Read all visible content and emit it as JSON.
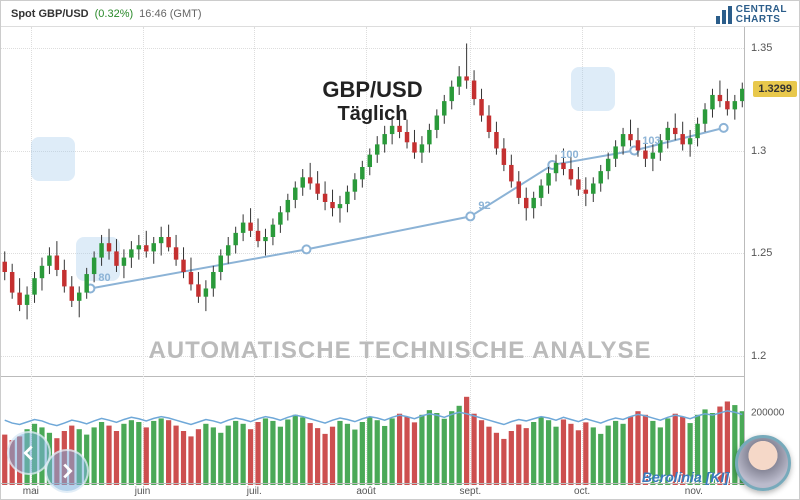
{
  "header": {
    "pair_label": "Spot GBP/USD",
    "change_pct": "(0.32%)",
    "time_label": "16:46 (GMT)"
  },
  "logo": {
    "line1": "CENTRAL",
    "line2": "CHARTS"
  },
  "title": {
    "pair": "GBP/USD",
    "period": "Täglich"
  },
  "watermark": "AUTOMATISCHE  TECHNISCHE ANALYSE",
  "berolinia": "Berolinia [KI]",
  "current_price_badge": "1.3299",
  "price_chart": {
    "type": "candlestick",
    "ylim": [
      1.19,
      1.36
    ],
    "yticks": [
      1.2,
      1.25,
      1.3,
      1.35
    ],
    "ytick_labels": [
      "1.2",
      "1.25",
      "1.3",
      "1.35"
    ],
    "grid_color": "#dddddd",
    "up_color": "#2a9a3a",
    "down_color": "#c43030",
    "wick_color": "#333333",
    "indicator_line_color": "#8cb3d6",
    "indicator_marker_color": "#8cb3d6",
    "indicator_points": [
      {
        "x": 0.12,
        "y": 1.233,
        "label": "80"
      },
      {
        "x": 0.41,
        "y": 1.252,
        "label": ""
      },
      {
        "x": 0.63,
        "y": 1.268,
        "label": "92"
      },
      {
        "x": 0.74,
        "y": 1.293,
        "label": "100"
      },
      {
        "x": 0.85,
        "y": 1.3,
        "label": "103"
      },
      {
        "x": 0.97,
        "y": 1.311,
        "label": ""
      }
    ],
    "candles": [
      {
        "o": 1.246,
        "h": 1.251,
        "l": 1.237,
        "c": 1.241
      },
      {
        "o": 1.241,
        "h": 1.245,
        "l": 1.228,
        "c": 1.231
      },
      {
        "o": 1.231,
        "h": 1.238,
        "l": 1.222,
        "c": 1.225
      },
      {
        "o": 1.225,
        "h": 1.234,
        "l": 1.218,
        "c": 1.23
      },
      {
        "o": 1.23,
        "h": 1.241,
        "l": 1.226,
        "c": 1.238
      },
      {
        "o": 1.238,
        "h": 1.248,
        "l": 1.232,
        "c": 1.244
      },
      {
        "o": 1.244,
        "h": 1.253,
        "l": 1.24,
        "c": 1.249
      },
      {
        "o": 1.249,
        "h": 1.256,
        "l": 1.239,
        "c": 1.242
      },
      {
        "o": 1.242,
        "h": 1.247,
        "l": 1.231,
        "c": 1.234
      },
      {
        "o": 1.234,
        "h": 1.239,
        "l": 1.224,
        "c": 1.227
      },
      {
        "o": 1.227,
        "h": 1.234,
        "l": 1.219,
        "c": 1.231
      },
      {
        "o": 1.231,
        "h": 1.243,
        "l": 1.228,
        "c": 1.24
      },
      {
        "o": 1.24,
        "h": 1.251,
        "l": 1.236,
        "c": 1.248
      },
      {
        "o": 1.248,
        "h": 1.259,
        "l": 1.244,
        "c": 1.255
      },
      {
        "o": 1.255,
        "h": 1.262,
        "l": 1.247,
        "c": 1.251
      },
      {
        "o": 1.251,
        "h": 1.257,
        "l": 1.241,
        "c": 1.244
      },
      {
        "o": 1.244,
        "h": 1.252,
        "l": 1.238,
        "c": 1.248
      },
      {
        "o": 1.248,
        "h": 1.256,
        "l": 1.243,
        "c": 1.252
      },
      {
        "o": 1.252,
        "h": 1.259,
        "l": 1.247,
        "c": 1.254
      },
      {
        "o": 1.254,
        "h": 1.261,
        "l": 1.248,
        "c": 1.251
      },
      {
        "o": 1.251,
        "h": 1.258,
        "l": 1.245,
        "c": 1.255
      },
      {
        "o": 1.255,
        "h": 1.263,
        "l": 1.249,
        "c": 1.258
      },
      {
        "o": 1.258,
        "h": 1.264,
        "l": 1.251,
        "c": 1.253
      },
      {
        "o": 1.253,
        "h": 1.259,
        "l": 1.244,
        "c": 1.247
      },
      {
        "o": 1.247,
        "h": 1.253,
        "l": 1.238,
        "c": 1.241
      },
      {
        "o": 1.241,
        "h": 1.248,
        "l": 1.232,
        "c": 1.235
      },
      {
        "o": 1.235,
        "h": 1.241,
        "l": 1.226,
        "c": 1.229
      },
      {
        "o": 1.229,
        "h": 1.237,
        "l": 1.222,
        "c": 1.233
      },
      {
        "o": 1.233,
        "h": 1.244,
        "l": 1.229,
        "c": 1.241
      },
      {
        "o": 1.241,
        "h": 1.252,
        "l": 1.237,
        "c": 1.249
      },
      {
        "o": 1.249,
        "h": 1.258,
        "l": 1.245,
        "c": 1.254
      },
      {
        "o": 1.254,
        "h": 1.263,
        "l": 1.25,
        "c": 1.26
      },
      {
        "o": 1.26,
        "h": 1.269,
        "l": 1.256,
        "c": 1.265
      },
      {
        "o": 1.265,
        "h": 1.272,
        "l": 1.258,
        "c": 1.261
      },
      {
        "o": 1.261,
        "h": 1.267,
        "l": 1.253,
        "c": 1.256
      },
      {
        "o": 1.256,
        "h": 1.262,
        "l": 1.249,
        "c": 1.258
      },
      {
        "o": 1.258,
        "h": 1.267,
        "l": 1.254,
        "c": 1.264
      },
      {
        "o": 1.264,
        "h": 1.273,
        "l": 1.26,
        "c": 1.27
      },
      {
        "o": 1.27,
        "h": 1.279,
        "l": 1.266,
        "c": 1.276
      },
      {
        "o": 1.276,
        "h": 1.285,
        "l": 1.272,
        "c": 1.282
      },
      {
        "o": 1.282,
        "h": 1.291,
        "l": 1.278,
        "c": 1.287
      },
      {
        "o": 1.287,
        "h": 1.294,
        "l": 1.281,
        "c": 1.284
      },
      {
        "o": 1.284,
        "h": 1.29,
        "l": 1.276,
        "c": 1.279
      },
      {
        "o": 1.279,
        "h": 1.285,
        "l": 1.271,
        "c": 1.275
      },
      {
        "o": 1.275,
        "h": 1.281,
        "l": 1.268,
        "c": 1.272
      },
      {
        "o": 1.272,
        "h": 1.278,
        "l": 1.265,
        "c": 1.274
      },
      {
        "o": 1.274,
        "h": 1.283,
        "l": 1.27,
        "c": 1.28
      },
      {
        "o": 1.28,
        "h": 1.289,
        "l": 1.276,
        "c": 1.286
      },
      {
        "o": 1.286,
        "h": 1.295,
        "l": 1.282,
        "c": 1.292
      },
      {
        "o": 1.292,
        "h": 1.301,
        "l": 1.288,
        "c": 1.298
      },
      {
        "o": 1.298,
        "h": 1.307,
        "l": 1.294,
        "c": 1.303
      },
      {
        "o": 1.303,
        "h": 1.312,
        "l": 1.299,
        "c": 1.308
      },
      {
        "o": 1.308,
        "h": 1.316,
        "l": 1.303,
        "c": 1.312
      },
      {
        "o": 1.312,
        "h": 1.319,
        "l": 1.306,
        "c": 1.309
      },
      {
        "o": 1.309,
        "h": 1.315,
        "l": 1.301,
        "c": 1.304
      },
      {
        "o": 1.304,
        "h": 1.31,
        "l": 1.296,
        "c": 1.299
      },
      {
        "o": 1.299,
        "h": 1.307,
        "l": 1.294,
        "c": 1.303
      },
      {
        "o": 1.303,
        "h": 1.313,
        "l": 1.299,
        "c": 1.31
      },
      {
        "o": 1.31,
        "h": 1.32,
        "l": 1.306,
        "c": 1.317
      },
      {
        "o": 1.317,
        "h": 1.327,
        "l": 1.313,
        "c": 1.324
      },
      {
        "o": 1.324,
        "h": 1.334,
        "l": 1.32,
        "c": 1.331
      },
      {
        "o": 1.331,
        "h": 1.341,
        "l": 1.327,
        "c": 1.336
      },
      {
        "o": 1.336,
        "h": 1.352,
        "l": 1.33,
        "c": 1.334
      },
      {
        "o": 1.334,
        "h": 1.339,
        "l": 1.322,
        "c": 1.325
      },
      {
        "o": 1.325,
        "h": 1.33,
        "l": 1.314,
        "c": 1.317
      },
      {
        "o": 1.317,
        "h": 1.322,
        "l": 1.306,
        "c": 1.309
      },
      {
        "o": 1.309,
        "h": 1.314,
        "l": 1.298,
        "c": 1.301
      },
      {
        "o": 1.301,
        "h": 1.306,
        "l": 1.29,
        "c": 1.293
      },
      {
        "o": 1.293,
        "h": 1.298,
        "l": 1.282,
        "c": 1.285
      },
      {
        "o": 1.285,
        "h": 1.29,
        "l": 1.274,
        "c": 1.277
      },
      {
        "o": 1.277,
        "h": 1.282,
        "l": 1.266,
        "c": 1.272
      },
      {
        "o": 1.272,
        "h": 1.28,
        "l": 1.267,
        "c": 1.277
      },
      {
        "o": 1.277,
        "h": 1.286,
        "l": 1.273,
        "c": 1.283
      },
      {
        "o": 1.283,
        "h": 1.292,
        "l": 1.279,
        "c": 1.289
      },
      {
        "o": 1.289,
        "h": 1.298,
        "l": 1.285,
        "c": 1.294
      },
      {
        "o": 1.294,
        "h": 1.301,
        "l": 1.288,
        "c": 1.291
      },
      {
        "o": 1.291,
        "h": 1.297,
        "l": 1.283,
        "c": 1.286
      },
      {
        "o": 1.286,
        "h": 1.292,
        "l": 1.278,
        "c": 1.281
      },
      {
        "o": 1.281,
        "h": 1.287,
        "l": 1.273,
        "c": 1.279
      },
      {
        "o": 1.279,
        "h": 1.287,
        "l": 1.275,
        "c": 1.284
      },
      {
        "o": 1.284,
        "h": 1.293,
        "l": 1.28,
        "c": 1.29
      },
      {
        "o": 1.29,
        "h": 1.299,
        "l": 1.286,
        "c": 1.296
      },
      {
        "o": 1.296,
        "h": 1.305,
        "l": 1.292,
        "c": 1.302
      },
      {
        "o": 1.302,
        "h": 1.311,
        "l": 1.298,
        "c": 1.308
      },
      {
        "o": 1.308,
        "h": 1.315,
        "l": 1.302,
        "c": 1.305
      },
      {
        "o": 1.305,
        "h": 1.311,
        "l": 1.297,
        "c": 1.3
      },
      {
        "o": 1.3,
        "h": 1.306,
        "l": 1.292,
        "c": 1.296
      },
      {
        "o": 1.296,
        "h": 1.303,
        "l": 1.29,
        "c": 1.299
      },
      {
        "o": 1.299,
        "h": 1.308,
        "l": 1.295,
        "c": 1.305
      },
      {
        "o": 1.305,
        "h": 1.314,
        "l": 1.301,
        "c": 1.311
      },
      {
        "o": 1.311,
        "h": 1.318,
        "l": 1.305,
        "c": 1.308
      },
      {
        "o": 1.308,
        "h": 1.314,
        "l": 1.3,
        "c": 1.303
      },
      {
        "o": 1.303,
        "h": 1.31,
        "l": 1.297,
        "c": 1.306
      },
      {
        "o": 1.306,
        "h": 1.316,
        "l": 1.302,
        "c": 1.313
      },
      {
        "o": 1.313,
        "h": 1.323,
        "l": 1.309,
        "c": 1.32
      },
      {
        "o": 1.32,
        "h": 1.33,
        "l": 1.316,
        "c": 1.327
      },
      {
        "o": 1.327,
        "h": 1.334,
        "l": 1.321,
        "c": 1.324
      },
      {
        "o": 1.324,
        "h": 1.33,
        "l": 1.317,
        "c": 1.32
      },
      {
        "o": 1.32,
        "h": 1.327,
        "l": 1.315,
        "c": 1.324
      },
      {
        "o": 1.324,
        "h": 1.333,
        "l": 1.321,
        "c": 1.33
      }
    ]
  },
  "volume_chart": {
    "type": "bar",
    "ylim": [
      0,
      300000
    ],
    "yticks": [
      0,
      200000
    ],
    "ytick_labels": [
      "0",
      "200000"
    ],
    "line_color": "#6fa8d8",
    "line_values": [
      180000,
      172000,
      168000,
      175000,
      182000,
      178000,
      170000,
      165000,
      172000,
      180000,
      176000,
      170000,
      178000,
      185000,
      180000,
      174000,
      182000,
      188000,
      184000,
      178000,
      185000,
      190000,
      186000,
      180000,
      174000,
      168000,
      175000,
      182000,
      178000,
      172000,
      180000,
      186000,
      182000,
      176000,
      184000,
      190000,
      186000,
      180000,
      188000,
      194000,
      190000,
      184000,
      178000,
      172000,
      180000,
      186000,
      182000,
      176000,
      184000,
      190000,
      186000,
      180000,
      188000,
      194000,
      190000,
      184000,
      192000,
      198000,
      194000,
      188000,
      196000,
      202000,
      198000,
      192000,
      186000,
      180000,
      174000,
      168000,
      176000,
      182000,
      178000,
      184000,
      190000,
      186000,
      180000,
      188000,
      182000,
      176000,
      184000,
      178000,
      172000,
      180000,
      186000,
      182000,
      190000,
      196000,
      192000,
      186000,
      180000,
      188000,
      194000,
      190000,
      184000,
      192000,
      198000,
      194000,
      200000,
      206000,
      202000,
      196000
    ],
    "volumes": [
      140000,
      125000,
      135000,
      155000,
      170000,
      160000,
      145000,
      130000,
      150000,
      165000,
      155000,
      140000,
      160000,
      175000,
      165000,
      150000,
      170000,
      180000,
      175000,
      160000,
      178000,
      185000,
      180000,
      165000,
      150000,
      135000,
      155000,
      170000,
      160000,
      145000,
      165000,
      178000,
      170000,
      155000,
      175000,
      185000,
      178000,
      162000,
      182000,
      195000,
      188000,
      172000,
      158000,
      142000,
      162000,
      178000,
      170000,
      154000,
      175000,
      188000,
      180000,
      164000,
      185000,
      198000,
      190000,
      174000,
      195000,
      208000,
      200000,
      184000,
      205000,
      220000,
      245000,
      198000,
      180000,
      162000,
      145000,
      128000,
      150000,
      168000,
      158000,
      175000,
      188000,
      180000,
      162000,
      182000,
      170000,
      152000,
      174000,
      160000,
      142000,
      165000,
      178000,
      170000,
      190000,
      205000,
      195000,
      178000,
      160000,
      185000,
      198000,
      190000,
      172000,
      195000,
      210000,
      200000,
      218000,
      232000,
      222000,
      205000
    ]
  },
  "x_axis": {
    "labels": [
      "mai",
      "juin",
      "juil.",
      "août",
      "sept.",
      "oct.",
      "nov."
    ],
    "positions": [
      0.04,
      0.19,
      0.34,
      0.49,
      0.63,
      0.78,
      0.93
    ]
  }
}
